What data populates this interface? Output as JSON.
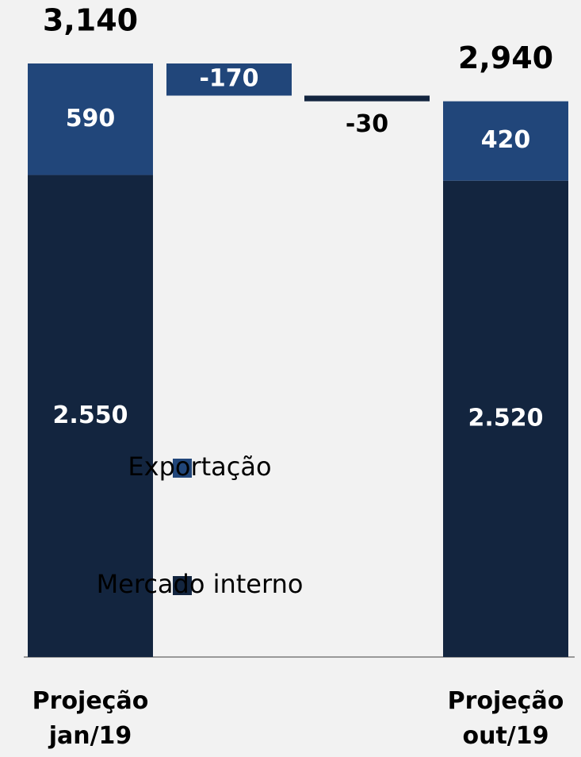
{
  "chart_data": {
    "type": "waterfall",
    "categories": [
      "Projeção jan/19",
      null,
      null,
      "Projeção out/19"
    ],
    "series": [
      {
        "name": "Mercado interno",
        "color": "#13253f",
        "values": [
          2550,
          null,
          -30,
          2520
        ],
        "value_labels": [
          "2.550",
          null,
          "-30",
          "2.520"
        ]
      },
      {
        "name": "Exportação",
        "color": "#21467a",
        "values": [
          590,
          -170,
          null,
          420
        ]
      }
    ],
    "totals": [
      3140,
      null,
      null,
      2940
    ],
    "total_labels": [
      "3,140",
      null,
      null,
      "2,940"
    ]
  }
}
